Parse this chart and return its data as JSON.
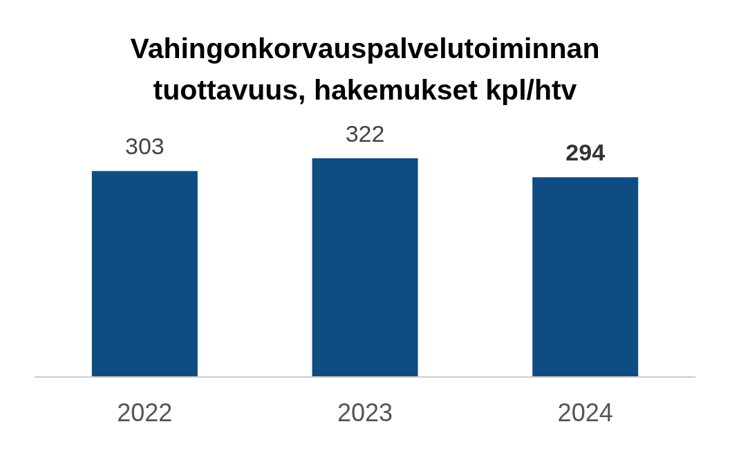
{
  "chart_data": {
    "type": "bar",
    "title": "Vahingonkorvauspalvelutoiminnan tuottavuus, hakemukset kpl/htv",
    "categories": [
      "2022",
      "2023",
      "2024"
    ],
    "values": [
      303,
      322,
      294
    ],
    "color": "#0f4c81",
    "data_labels": true,
    "tick_labels": "x"
  }
}
